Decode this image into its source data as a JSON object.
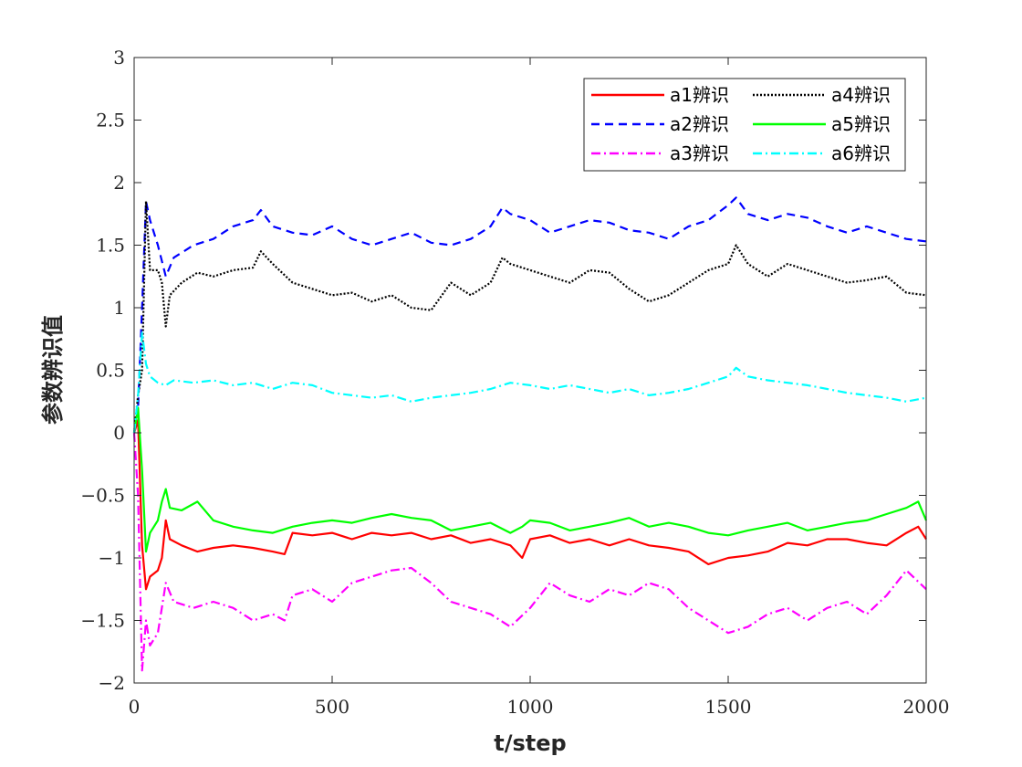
{
  "chart_data": {
    "type": "line",
    "title": "",
    "xlabel": "t/step",
    "ylabel": "参数辨识值",
    "xlim": [
      0,
      2000
    ],
    "ylim": [
      -2,
      3
    ],
    "xticks": [
      0,
      500,
      1000,
      1500,
      2000
    ],
    "xtick_labels": [
      "0",
      "500",
      "1000",
      "1500",
      "2000"
    ],
    "yticks": [
      -2,
      -1.5,
      -1,
      -0.5,
      0,
      0.5,
      1,
      1.5,
      2,
      2.5,
      3
    ],
    "ytick_labels": [
      "−2",
      "−1.5",
      "−1",
      "−0.5",
      "0",
      "0.5",
      "1",
      "1.5",
      "2",
      "2.5",
      "3"
    ],
    "grid": false,
    "legend_position": "top-right",
    "legend_columns": 2,
    "series": [
      {
        "name": "a1辨识",
        "color": "#ff0000",
        "dash": "solid",
        "x": [
          0,
          10,
          20,
          30,
          40,
          60,
          70,
          80,
          90,
          120,
          160,
          200,
          250,
          300,
          350,
          380,
          400,
          450,
          500,
          550,
          600,
          650,
          700,
          750,
          800,
          850,
          900,
          950,
          980,
          1000,
          1050,
          1100,
          1150,
          1200,
          1250,
          1300,
          1350,
          1400,
          1450,
          1500,
          1550,
          1600,
          1650,
          1700,
          1750,
          1800,
          1850,
          1900,
          1950,
          1980,
          2000
        ],
        "values": [
          0,
          0.1,
          -0.9,
          -1.25,
          -1.15,
          -1.1,
          -1.0,
          -0.7,
          -0.85,
          -0.9,
          -0.95,
          -0.92,
          -0.9,
          -0.92,
          -0.95,
          -0.97,
          -0.8,
          -0.82,
          -0.8,
          -0.85,
          -0.8,
          -0.82,
          -0.8,
          -0.85,
          -0.82,
          -0.88,
          -0.85,
          -0.9,
          -1.0,
          -0.85,
          -0.82,
          -0.88,
          -0.85,
          -0.9,
          -0.85,
          -0.9,
          -0.92,
          -0.95,
          -1.05,
          -1.0,
          -0.98,
          -0.95,
          -0.88,
          -0.9,
          -0.85,
          -0.85,
          -0.88,
          -0.9,
          -0.8,
          -0.75,
          -0.85
        ]
      },
      {
        "name": "a2辨识",
        "color": "#0000ff",
        "dash": "dashed",
        "x": [
          0,
          10,
          20,
          30,
          40,
          60,
          80,
          100,
          150,
          200,
          250,
          300,
          320,
          350,
          400,
          450,
          500,
          550,
          600,
          650,
          700,
          750,
          800,
          850,
          900,
          930,
          950,
          1000,
          1050,
          1100,
          1150,
          1200,
          1250,
          1300,
          1350,
          1400,
          1450,
          1500,
          1520,
          1550,
          1600,
          1650,
          1700,
          1750,
          1800,
          1850,
          1900,
          1950,
          2000
        ],
        "values": [
          0,
          0.2,
          1.0,
          1.85,
          1.7,
          1.5,
          1.25,
          1.4,
          1.5,
          1.55,
          1.65,
          1.7,
          1.78,
          1.65,
          1.6,
          1.58,
          1.65,
          1.55,
          1.5,
          1.55,
          1.6,
          1.52,
          1.5,
          1.55,
          1.65,
          1.8,
          1.75,
          1.7,
          1.6,
          1.65,
          1.7,
          1.68,
          1.62,
          1.6,
          1.55,
          1.65,
          1.7,
          1.82,
          1.88,
          1.75,
          1.7,
          1.75,
          1.72,
          1.65,
          1.6,
          1.65,
          1.6,
          1.55,
          1.53
        ]
      },
      {
        "name": "a3辨识",
        "color": "#ff00ff",
        "dash": "dashdot",
        "x": [
          0,
          10,
          20,
          30,
          40,
          60,
          80,
          100,
          150,
          200,
          250,
          300,
          350,
          380,
          400,
          450,
          500,
          550,
          600,
          650,
          700,
          750,
          800,
          850,
          900,
          950,
          1000,
          1050,
          1100,
          1150,
          1200,
          1250,
          1300,
          1350,
          1400,
          1450,
          1500,
          1550,
          1600,
          1650,
          1700,
          1750,
          1800,
          1850,
          1900,
          1950,
          2000
        ],
        "values": [
          0,
          -0.5,
          -1.9,
          -1.5,
          -1.7,
          -1.6,
          -1.2,
          -1.35,
          -1.4,
          -1.35,
          -1.4,
          -1.5,
          -1.45,
          -1.5,
          -1.3,
          -1.25,
          -1.35,
          -1.2,
          -1.15,
          -1.1,
          -1.08,
          -1.2,
          -1.35,
          -1.4,
          -1.45,
          -1.55,
          -1.4,
          -1.2,
          -1.3,
          -1.35,
          -1.25,
          -1.3,
          -1.2,
          -1.25,
          -1.4,
          -1.5,
          -1.6,
          -1.55,
          -1.45,
          -1.4,
          -1.5,
          -1.4,
          -1.35,
          -1.45,
          -1.3,
          -1.1,
          -1.25
        ]
      },
      {
        "name": "a4辨识",
        "color": "#000000",
        "dash": "dotted",
        "x": [
          0,
          10,
          20,
          30,
          40,
          60,
          70,
          80,
          90,
          120,
          160,
          200,
          250,
          300,
          320,
          350,
          400,
          450,
          500,
          550,
          600,
          650,
          700,
          750,
          800,
          850,
          900,
          930,
          950,
          1000,
          1050,
          1100,
          1150,
          1200,
          1250,
          1300,
          1350,
          1400,
          1450,
          1500,
          1520,
          1550,
          1600,
          1650,
          1700,
          1750,
          1800,
          1850,
          1900,
          1950,
          2000
        ],
        "values": [
          0,
          0.3,
          0.5,
          1.85,
          1.3,
          1.3,
          1.2,
          0.85,
          1.1,
          1.2,
          1.28,
          1.25,
          1.3,
          1.32,
          1.45,
          1.35,
          1.2,
          1.15,
          1.1,
          1.12,
          1.05,
          1.1,
          1.0,
          0.98,
          1.2,
          1.1,
          1.2,
          1.4,
          1.35,
          1.3,
          1.25,
          1.2,
          1.3,
          1.28,
          1.15,
          1.05,
          1.1,
          1.2,
          1.3,
          1.35,
          1.5,
          1.35,
          1.25,
          1.35,
          1.3,
          1.25,
          1.2,
          1.22,
          1.25,
          1.12,
          1.1
        ]
      },
      {
        "name": "a5辨识",
        "color": "#00ff00",
        "dash": "solid",
        "x": [
          0,
          10,
          20,
          30,
          40,
          60,
          70,
          80,
          90,
          120,
          160,
          200,
          250,
          300,
          350,
          400,
          450,
          500,
          550,
          600,
          650,
          700,
          750,
          800,
          850,
          900,
          950,
          980,
          1000,
          1050,
          1100,
          1150,
          1200,
          1250,
          1300,
          1350,
          1400,
          1450,
          1500,
          1550,
          1600,
          1650,
          1700,
          1750,
          1800,
          1850,
          1900,
          1950,
          1980,
          2000
        ],
        "values": [
          0,
          0.2,
          -0.3,
          -0.95,
          -0.8,
          -0.7,
          -0.55,
          -0.45,
          -0.6,
          -0.62,
          -0.55,
          -0.7,
          -0.75,
          -0.78,
          -0.8,
          -0.75,
          -0.72,
          -0.7,
          -0.72,
          -0.68,
          -0.65,
          -0.68,
          -0.7,
          -0.78,
          -0.75,
          -0.72,
          -0.8,
          -0.75,
          -0.7,
          -0.72,
          -0.78,
          -0.75,
          -0.72,
          -0.68,
          -0.75,
          -0.72,
          -0.75,
          -0.8,
          -0.82,
          -0.78,
          -0.75,
          -0.72,
          -0.78,
          -0.75,
          -0.72,
          -0.7,
          -0.65,
          -0.6,
          -0.55,
          -0.7
        ]
      },
      {
        "name": "a6辨识",
        "color": "#00ffff",
        "dash": "dashdot",
        "x": [
          0,
          10,
          20,
          30,
          40,
          60,
          80,
          100,
          150,
          200,
          250,
          300,
          350,
          400,
          450,
          500,
          550,
          600,
          650,
          700,
          750,
          800,
          850,
          900,
          950,
          1000,
          1050,
          1100,
          1150,
          1200,
          1250,
          1300,
          1350,
          1400,
          1450,
          1500,
          1520,
          1550,
          1600,
          1650,
          1700,
          1750,
          1800,
          1850,
          1900,
          1950,
          2000
        ],
        "values": [
          0,
          0.3,
          0.8,
          0.55,
          0.45,
          0.4,
          0.38,
          0.42,
          0.4,
          0.42,
          0.38,
          0.4,
          0.35,
          0.4,
          0.38,
          0.32,
          0.3,
          0.28,
          0.3,
          0.25,
          0.28,
          0.3,
          0.32,
          0.35,
          0.4,
          0.38,
          0.35,
          0.38,
          0.35,
          0.32,
          0.35,
          0.3,
          0.32,
          0.35,
          0.4,
          0.45,
          0.52,
          0.45,
          0.42,
          0.4,
          0.38,
          0.35,
          0.32,
          0.3,
          0.28,
          0.25,
          0.28
        ]
      }
    ]
  }
}
